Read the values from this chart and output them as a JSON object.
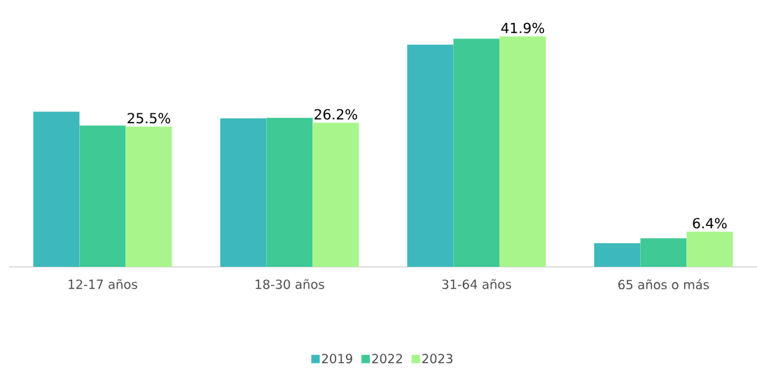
{
  "chart_data": {
    "type": "bar",
    "categories": [
      "12-17 años",
      "18-30 años",
      "31-64 años",
      "65 años o más"
    ],
    "series": [
      {
        "name": "2019",
        "color": "#3db8bb",
        "values": [
          28.2,
          27.0,
          40.4,
          4.3
        ]
      },
      {
        "name": "2022",
        "color": "#3ec995",
        "values": [
          25.7,
          27.1,
          41.5,
          5.2
        ]
      },
      {
        "name": "2023",
        "color": "#a8f58c",
        "values": [
          25.5,
          26.2,
          41.9,
          6.4
        ],
        "value_labels": [
          "25.5%",
          "26.2%",
          "41.9%",
          "6.4%"
        ]
      }
    ],
    "legend": "bottom"
  }
}
